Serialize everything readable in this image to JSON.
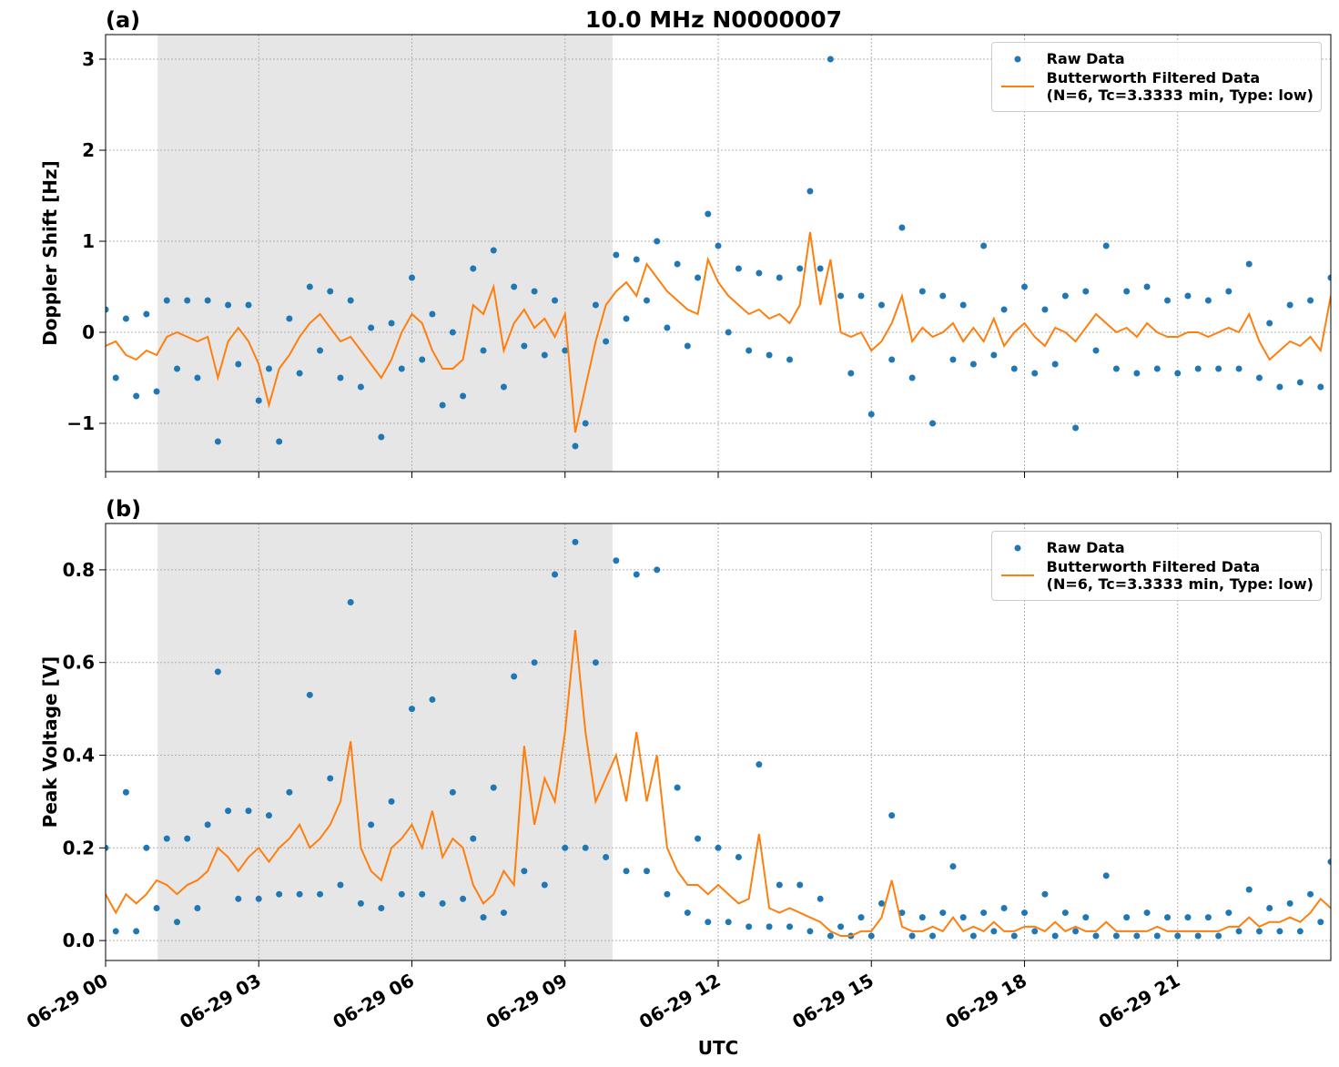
{
  "chart_data": [
    {
      "type": "line",
      "title": "10.0 MHz N0000007",
      "panel_label": "(a)",
      "y_label": "Doppler Shift [Hz]",
      "x": [
        0,
        0.2,
        0.4,
        0.6,
        0.8,
        1,
        1.2,
        1.4,
        1.6,
        1.8,
        2,
        2.2,
        2.4,
        2.6,
        2.8,
        3,
        3.2,
        3.4,
        3.6,
        3.8,
        4,
        4.2,
        4.4,
        4.6,
        4.8,
        5,
        5.2,
        5.4,
        5.6,
        5.8,
        6,
        6.2,
        6.4,
        6.6,
        6.8,
        7,
        7.2,
        7.4,
        7.6,
        7.8,
        8,
        8.2,
        8.4,
        8.6,
        8.8,
        9,
        9.2,
        9.4,
        9.6,
        9.8,
        10,
        10.2,
        10.4,
        10.6,
        10.8,
        11,
        11.2,
        11.4,
        11.6,
        11.8,
        12,
        12.2,
        12.4,
        12.6,
        12.8,
        13,
        13.2,
        13.4,
        13.6,
        13.8,
        14,
        14.2,
        14.4,
        14.6,
        14.8,
        15,
        15.2,
        15.4,
        15.6,
        15.8,
        16,
        16.2,
        16.4,
        16.6,
        16.8,
        17,
        17.2,
        17.4,
        17.6,
        17.8,
        18,
        18.2,
        18.4,
        18.6,
        18.8,
        19,
        19.2,
        19.4,
        19.6,
        19.8,
        20,
        20.2,
        20.4,
        20.6,
        20.8,
        21,
        21.2,
        21.4,
        21.6,
        21.8,
        22,
        22.2,
        22.4,
        22.6,
        22.8,
        23,
        23.2,
        23.4,
        23.6,
        23.8,
        24
      ],
      "series": [
        {
          "name": "Raw Data",
          "type": "scatter",
          "color": "#1f77b4",
          "values": [
            0.25,
            -0.5,
            0.15,
            -0.7,
            0.2,
            -0.65,
            0.35,
            -0.4,
            0.35,
            -0.5,
            0.35,
            -1.2,
            0.3,
            -0.35,
            0.3,
            -0.75,
            -0.4,
            -1.2,
            0.15,
            -0.45,
            0.5,
            -0.2,
            0.45,
            -0.5,
            0.35,
            -0.6,
            0.05,
            -1.15,
            0.1,
            -0.4,
            0.6,
            -0.3,
            0.2,
            -0.8,
            0,
            -0.7,
            0.7,
            -0.2,
            0.9,
            -0.6,
            0.5,
            -0.15,
            0.45,
            -0.25,
            0.35,
            -0.2,
            -1.25,
            -1,
            0.3,
            -0.1,
            0.85,
            0.15,
            0.8,
            0.35,
            1,
            0.05,
            0.75,
            -0.15,
            0.6,
            1.3,
            0.95,
            0,
            0.7,
            -0.2,
            0.65,
            -0.25,
            0.6,
            -0.3,
            0.7,
            1.55,
            0.7,
            3,
            0.4,
            -0.45,
            0.4,
            -0.9,
            0.3,
            -0.3,
            1.15,
            -0.5,
            0.45,
            -1,
            0.4,
            -0.3,
            0.3,
            -0.35,
            0.95,
            -0.25,
            0.25,
            -0.4,
            0.5,
            -0.45,
            0.25,
            -0.35,
            0.4,
            -1.05,
            0.45,
            -0.2,
            0.95,
            -0.4,
            0.45,
            -0.45,
            0.5,
            -0.4,
            0.35,
            -0.45,
            0.4,
            -0.4,
            0.35,
            -0.4,
            0.45,
            -0.4,
            0.75,
            -0.5,
            0.1,
            -0.6,
            0.3,
            -0.55,
            0.35,
            -0.6,
            0.6
          ]
        },
        {
          "name": "Butterworth Filtered Data\n(N=6, Tc=3.3333 min, Type: low)",
          "type": "line",
          "color": "#ff7f0e",
          "values": [
            -0.15,
            -0.1,
            -0.25,
            -0.3,
            -0.2,
            -0.25,
            -0.05,
            0,
            -0.05,
            -0.1,
            -0.05,
            -0.5,
            -0.1,
            0.05,
            -0.1,
            -0.35,
            -0.8,
            -0.4,
            -0.25,
            -0.05,
            0.1,
            0.2,
            0.05,
            -0.1,
            -0.05,
            -0.2,
            -0.35,
            -0.5,
            -0.3,
            0,
            0.2,
            0.1,
            -0.2,
            -0.4,
            -0.4,
            -0.3,
            0.3,
            0.2,
            0.5,
            -0.2,
            0.1,
            0.25,
            0.05,
            0.15,
            -0.05,
            0.2,
            -1.1,
            -0.6,
            -0.1,
            0.3,
            0.45,
            0.55,
            0.4,
            0.75,
            0.6,
            0.45,
            0.35,
            0.25,
            0.2,
            0.8,
            0.55,
            0.4,
            0.3,
            0.2,
            0.25,
            0.15,
            0.2,
            0.1,
            0.3,
            1.1,
            0.3,
            0.8,
            0,
            -0.05,
            0,
            -0.2,
            -0.1,
            0.1,
            0.4,
            -0.1,
            0.05,
            -0.05,
            0,
            0.1,
            -0.1,
            0.05,
            -0.1,
            0.15,
            -0.15,
            0,
            0.1,
            -0.05,
            -0.15,
            0.05,
            0,
            -0.1,
            0.05,
            0.2,
            0.1,
            0,
            0.05,
            -0.05,
            0.1,
            0,
            -0.05,
            -0.05,
            0,
            0,
            -0.05,
            0,
            0.05,
            0,
            0.2,
            -0.1,
            -0.3,
            -0.2,
            -0.1,
            -0.15,
            -0.05,
            -0.2,
            0.4
          ]
        }
      ],
      "xlim": [
        0,
        24
      ],
      "xticks": [
        0,
        3,
        6,
        9,
        12,
        15,
        18,
        21
      ],
      "ylim": [
        -1.53,
        3.27
      ],
      "yticks": [
        {
          "value": -1,
          "label": "−1"
        },
        0,
        1,
        2,
        3
      ],
      "grid": true,
      "legend": "upper right",
      "highlight_span": [
        1.02,
        9.93
      ],
      "highlight_color": "#e6e6e6"
    },
    {
      "type": "line",
      "panel_label": "(b)",
      "y_label": "Peak Voltage [V]",
      "x_label": "UTC",
      "x": [
        0,
        0.2,
        0.4,
        0.6,
        0.8,
        1,
        1.2,
        1.4,
        1.6,
        1.8,
        2,
        2.2,
        2.4,
        2.6,
        2.8,
        3,
        3.2,
        3.4,
        3.6,
        3.8,
        4,
        4.2,
        4.4,
        4.6,
        4.8,
        5,
        5.2,
        5.4,
        5.6,
        5.8,
        6,
        6.2,
        6.4,
        6.6,
        6.8,
        7,
        7.2,
        7.4,
        7.6,
        7.8,
        8,
        8.2,
        8.4,
        8.6,
        8.8,
        9,
        9.2,
        9.4,
        9.6,
        9.8,
        10,
        10.2,
        10.4,
        10.6,
        10.8,
        11,
        11.2,
        11.4,
        11.6,
        11.8,
        12,
        12.2,
        12.4,
        12.6,
        12.8,
        13,
        13.2,
        13.4,
        13.6,
        13.8,
        14,
        14.2,
        14.4,
        14.6,
        14.8,
        15,
        15.2,
        15.4,
        15.6,
        15.8,
        16,
        16.2,
        16.4,
        16.6,
        16.8,
        17,
        17.2,
        17.4,
        17.6,
        17.8,
        18,
        18.2,
        18.4,
        18.6,
        18.8,
        19,
        19.2,
        19.4,
        19.6,
        19.8,
        20,
        20.2,
        20.4,
        20.6,
        20.8,
        21,
        21.2,
        21.4,
        21.6,
        21.8,
        22,
        22.2,
        22.4,
        22.6,
        22.8,
        23,
        23.2,
        23.4,
        23.6,
        23.8,
        24
      ],
      "series": [
        {
          "name": "Raw Data",
          "type": "scatter",
          "color": "#1f77b4",
          "values": [
            0.2,
            0.02,
            0.32,
            0.02,
            0.2,
            0.07,
            0.22,
            0.04,
            0.22,
            0.07,
            0.25,
            0.58,
            0.28,
            0.09,
            0.28,
            0.09,
            0.27,
            0.1,
            0.32,
            0.1,
            0.53,
            0.1,
            0.35,
            0.12,
            0.73,
            0.08,
            0.25,
            0.07,
            0.3,
            0.1,
            0.5,
            0.1,
            0.52,
            0.08,
            0.32,
            0.09,
            0.22,
            0.05,
            0.33,
            0.06,
            0.57,
            0.15,
            0.6,
            0.12,
            0.79,
            0.2,
            0.86,
            0.2,
            0.6,
            0.18,
            0.82,
            0.15,
            0.79,
            0.15,
            0.8,
            0.1,
            0.33,
            0.06,
            0.22,
            0.04,
            0.2,
            0.04,
            0.18,
            0.03,
            0.38,
            0.03,
            0.12,
            0.03,
            0.12,
            0.02,
            0.09,
            0.01,
            0.03,
            0.01,
            0.05,
            0.01,
            0.08,
            0.27,
            0.06,
            0.01,
            0.05,
            0.01,
            0.06,
            0.16,
            0.05,
            0.01,
            0.06,
            0.02,
            0.07,
            0.01,
            0.06,
            0.02,
            0.1,
            0.01,
            0.06,
            0.02,
            0.05,
            0.01,
            0.14,
            0.01,
            0.05,
            0.01,
            0.06,
            0.01,
            0.05,
            0.01,
            0.05,
            0.01,
            0.05,
            0.01,
            0.06,
            0.02,
            0.11,
            0.02,
            0.07,
            0.02,
            0.08,
            0.02,
            0.1,
            0.04,
            0.17
          ]
        },
        {
          "name": "Butterworth Filtered Data\n(N=6, Tc=3.3333 min, Type: low)",
          "type": "line",
          "color": "#ff7f0e",
          "values": [
            0.1,
            0.06,
            0.1,
            0.08,
            0.1,
            0.13,
            0.12,
            0.1,
            0.12,
            0.13,
            0.15,
            0.2,
            0.18,
            0.15,
            0.18,
            0.2,
            0.17,
            0.2,
            0.22,
            0.25,
            0.2,
            0.22,
            0.25,
            0.3,
            0.43,
            0.2,
            0.15,
            0.13,
            0.2,
            0.22,
            0.25,
            0.2,
            0.28,
            0.18,
            0.22,
            0.2,
            0.12,
            0.08,
            0.1,
            0.15,
            0.12,
            0.42,
            0.25,
            0.35,
            0.3,
            0.45,
            0.67,
            0.45,
            0.3,
            0.35,
            0.4,
            0.3,
            0.45,
            0.3,
            0.4,
            0.2,
            0.15,
            0.12,
            0.12,
            0.1,
            0.12,
            0.1,
            0.08,
            0.09,
            0.23,
            0.07,
            0.06,
            0.07,
            0.06,
            0.05,
            0.04,
            0.02,
            0.01,
            0.01,
            0.02,
            0.02,
            0.05,
            0.13,
            0.03,
            0.02,
            0.02,
            0.03,
            0.02,
            0.05,
            0.02,
            0.03,
            0.02,
            0.04,
            0.02,
            0.02,
            0.03,
            0.03,
            0.02,
            0.04,
            0.02,
            0.03,
            0.02,
            0.02,
            0.04,
            0.02,
            0.02,
            0.02,
            0.02,
            0.03,
            0.02,
            0.02,
            0.02,
            0.02,
            0.02,
            0.02,
            0.03,
            0.03,
            0.05,
            0.03,
            0.04,
            0.04,
            0.05,
            0.04,
            0.06,
            0.09,
            0.07
          ]
        }
      ],
      "xlim": [
        0,
        24
      ],
      "xticks": [
        {
          "value": 0,
          "label": "06-29 00"
        },
        {
          "value": 3,
          "label": "06-29 03"
        },
        {
          "value": 6,
          "label": "06-29 06"
        },
        {
          "value": 9,
          "label": "06-29 09"
        },
        {
          "value": 12,
          "label": "06-29 12"
        },
        {
          "value": 15,
          "label": "06-29 15"
        },
        {
          "value": 18,
          "label": "06-29 18"
        },
        {
          "value": 21,
          "label": "06-29 21"
        }
      ],
      "ylim": [
        -0.043,
        0.9
      ],
      "yticks": [
        {
          "value": 0,
          "label": "0.0"
        },
        0.2,
        0.4,
        0.6,
        0.8
      ],
      "grid": true,
      "legend": "upper right",
      "highlight_span": [
        1.02,
        9.93
      ],
      "highlight_color": "#e6e6e6"
    }
  ]
}
